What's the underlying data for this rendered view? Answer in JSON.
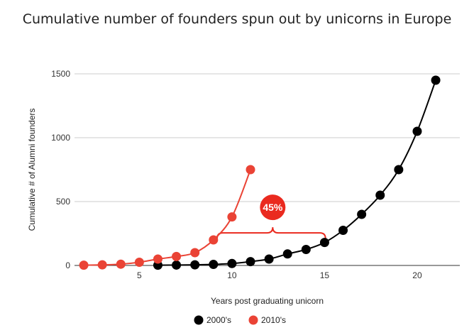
{
  "chart_data": {
    "type": "line",
    "title": "Cumulative number of founders spun out by unicorns in Europe",
    "xlabel": "Years post graduating unicorn",
    "ylabel": "Cumulative # of Alumni founders",
    "xlim": [
      1.5,
      22.3
    ],
    "ylim": [
      0,
      1500
    ],
    "x_ticks": [
      5,
      10,
      15,
      20
    ],
    "y_ticks": [
      0,
      500,
      1000,
      1500
    ],
    "grid": "horizontal",
    "legend_position": "bottom",
    "series": [
      {
        "name": "2000's",
        "color": "#000000",
        "x": [
          6,
          7,
          8,
          9,
          10,
          11,
          12,
          13,
          14,
          15,
          16,
          17,
          18,
          19,
          20,
          21
        ],
        "y": [
          2,
          3,
          5,
          8,
          15,
          30,
          50,
          90,
          125,
          180,
          275,
          400,
          550,
          750,
          1050,
          1450
        ]
      },
      {
        "name": "2010's",
        "color": "#ea4335",
        "x": [
          2,
          3,
          4,
          5,
          6,
          7,
          8,
          9,
          10,
          11
        ],
        "y": [
          2,
          5,
          10,
          25,
          50,
          70,
          100,
          200,
          380,
          750
        ]
      }
    ],
    "annotations": [
      {
        "text": "45%",
        "color": "#ea2a1f",
        "bracket_x": [
          9.2,
          15.05
        ],
        "bracket_y": 255,
        "label_x": 12.2,
        "label_y": 455
      }
    ]
  }
}
